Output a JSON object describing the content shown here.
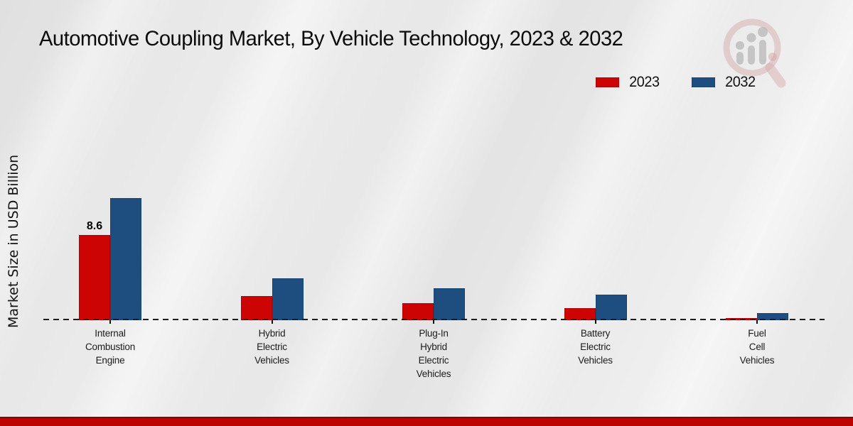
{
  "title": "Automotive Coupling Market, By Vehicle Technology, 2023 & 2032",
  "y_axis_label": "Market Size in USD Billion",
  "colors": {
    "series_2023": "#cc0404",
    "series_2032": "#1e4e80",
    "bottom_stripe": "#bd0202",
    "baseline": "#1c1c1c",
    "background": "#e8e8e8"
  },
  "watermark_icon": "magnifier-bar-chart-logo",
  "chart_data": {
    "type": "bar",
    "title": "Automotive Coupling Market, By Vehicle Technology, 2023 & 2032",
    "xlabel": "",
    "ylabel": "Market Size in USD Billion",
    "categories": [
      "Internal Combustion Engine",
      "Hybrid Electric Vehicles",
      "Plug-In Hybrid Electric Vehicles",
      "Battery Electric Vehicles",
      "Fuel Cell Vehicles"
    ],
    "series": [
      {
        "name": "2023",
        "color": "#cc0404",
        "values": [
          8.6,
          2.4,
          1.7,
          1.2,
          0.2
        ]
      },
      {
        "name": "2032",
        "color": "#1e4e80",
        "values": [
          12.3,
          4.2,
          3.2,
          2.6,
          0.7
        ]
      }
    ],
    "annotations": [
      {
        "group": 0,
        "series": 0,
        "text": "8.6"
      }
    ],
    "ylim": [
      0,
      13
    ],
    "grid": false,
    "baseline_style": "dashed",
    "legend_position": "top-right"
  }
}
